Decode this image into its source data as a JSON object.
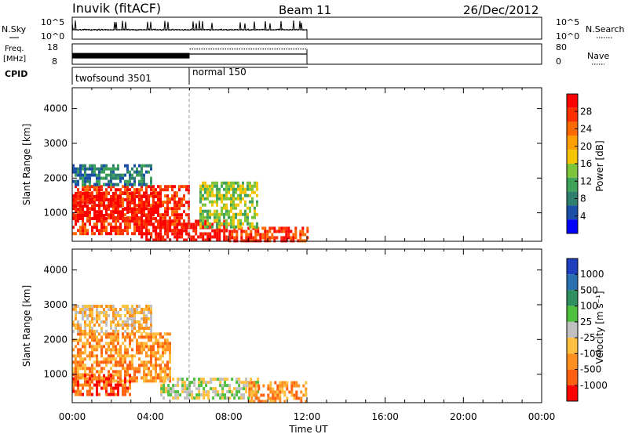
{
  "header": {
    "station": "Inuvik (fitACF)",
    "beam": "Beam 11",
    "date": "26/Dec/2012"
  },
  "noise_panel": {
    "left_label": "N.Sky",
    "right_label": "N.Search",
    "left_ticks": [
      "10^5",
      "10^0"
    ],
    "right_ticks": [
      "10^5",
      "10^0"
    ]
  },
  "freq_panel": {
    "left_label_1": "Freq.",
    "left_label_2": "[MHz]",
    "right_label": "Nave",
    "left_ticks": [
      "18",
      "8"
    ],
    "right_ticks": [
      "80",
      "0"
    ]
  },
  "cpid_panel": {
    "label": "CPID",
    "modes": [
      {
        "name": "twofsound 3501",
        "start": 0,
        "end": 6
      },
      {
        "name": "normal 150",
        "start": 6,
        "end": 12
      }
    ]
  },
  "power_panel": {
    "ylabel": "Slant Range [km]",
    "yticks": [
      "1000",
      "2000",
      "3000",
      "4000"
    ],
    "colorbar_label": "Power [dB]",
    "colorbar_ticks": [
      "4",
      "8",
      "12",
      "16",
      "20",
      "24",
      "28"
    ],
    "colors": [
      "#0000ff",
      "#1a4fa8",
      "#2e7f6e",
      "#3fa25a",
      "#7cc43a",
      "#f5c400",
      "#ffa000",
      "#ff6a00",
      "#ff3000",
      "#ff0000"
    ]
  },
  "velocity_panel": {
    "ylabel": "Slant Range [km]",
    "yticks": [
      "1000",
      "2000",
      "3000",
      "4000"
    ],
    "colorbar_label": "Velocity [m s⁻¹]",
    "colorbar_ticks": [
      "1000",
      "500",
      "100",
      "25",
      "-25",
      "-100",
      "-500",
      "-1000"
    ],
    "colors": [
      "#1f3fbf",
      "#2a6fb0",
      "#2f8f5f",
      "#4fbf3f",
      "#c0c0c0",
      "#ffc040",
      "#ff9020",
      "#ff6010",
      "#ff0000"
    ]
  },
  "xaxis": {
    "label": "Time UT",
    "ticks": [
      "00:00",
      "04:00",
      "08:00",
      "12:00",
      "16:00",
      "20:00",
      "00:00"
    ]
  },
  "chart_data": {
    "type": "heatmap",
    "x_range_hours": [
      0,
      24
    ],
    "y_range_km": [
      180,
      4600
    ],
    "data_end_hours": 12,
    "mode_change_hours": 6,
    "freq_mhz": {
      "segment1": 12,
      "segment2": 13
    },
    "nave": {
      "segment1": 0,
      "segment2": 60
    },
    "power_regions": [
      {
        "t0": 0,
        "t1": 6,
        "r0": 400,
        "r1": 1800,
        "level": 8
      },
      {
        "t0": 0,
        "t1": 4.5,
        "r0": 800,
        "r1": 1600,
        "level": 9
      },
      {
        "t0": 3.5,
        "t1": 8,
        "r0": 180,
        "r1": 800,
        "level": 9
      },
      {
        "t0": 8,
        "t1": 12,
        "r0": 180,
        "r1": 600,
        "level": 8
      },
      {
        "t0": 0,
        "t1": 4,
        "r0": 1800,
        "r1": 2400,
        "level": 2
      },
      {
        "t0": 6.5,
        "t1": 9.5,
        "r0": 600,
        "r1": 1900,
        "level": 4
      }
    ],
    "velocity_regions": [
      {
        "t0": 0,
        "t1": 5,
        "r0": 800,
        "r1": 2200,
        "level": 6
      },
      {
        "t0": 0,
        "t1": 3,
        "r0": 400,
        "r1": 1000,
        "level": 7
      },
      {
        "t0": 4.5,
        "t1": 9.5,
        "r0": 300,
        "r1": 900,
        "level": 4
      },
      {
        "t0": 9,
        "t1": 12,
        "r0": 180,
        "r1": 800,
        "level": 6
      },
      {
        "t0": 0,
        "t1": 4,
        "r0": 2200,
        "r1": 3000,
        "level": 5
      }
    ]
  }
}
